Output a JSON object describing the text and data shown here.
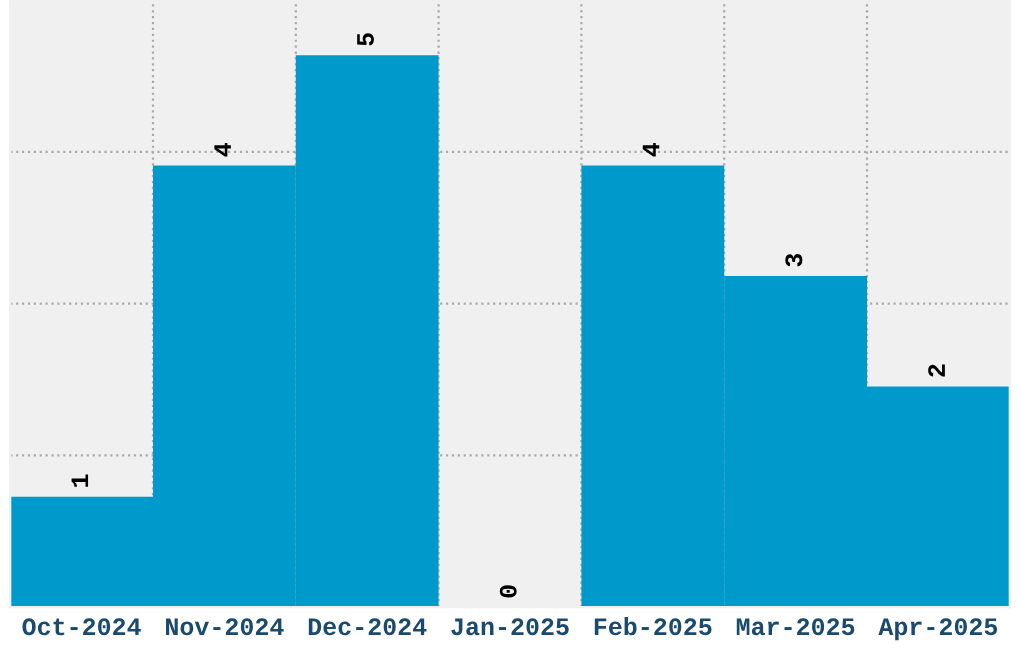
{
  "chart_data": {
    "type": "bar",
    "categories": [
      "Oct-2024",
      "Nov-2024",
      "Dec-2024",
      "Jan-2025",
      "Feb-2025",
      "Mar-2025",
      "Apr-2025"
    ],
    "values": [
      1,
      4,
      5,
      0,
      4,
      3,
      2
    ],
    "color": "#0099cc",
    "ylim": [
      0,
      5.5
    ],
    "yticks": [
      {
        "value": 0,
        "label": null
      },
      {
        "value": 1.375,
        "label": null
      },
      {
        "value": 2.75,
        "label": null
      },
      {
        "value": 4.125,
        "label": null
      },
      {
        "value": 5.5,
        "label": null
      }
    ],
    "tick_labels": "x",
    "grid": true,
    "data_labels": true
  }
}
